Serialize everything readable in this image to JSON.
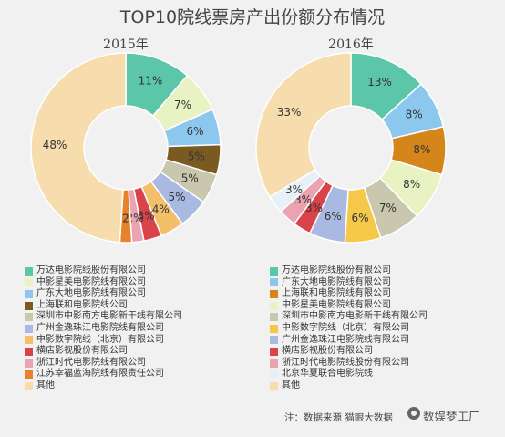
{
  "title": "TOP10院线票房产出份额分布情况",
  "source_note": "注：数据来源 猫眼大数据",
  "brand": "数娱梦工厂",
  "chart_data": [
    {
      "type": "pie",
      "title": "2015年",
      "slices": [
        {
          "label": "万达电影院线股份有限公司",
          "value": 11,
          "text": "11%",
          "color": "#5cc6a8"
        },
        {
          "label": "中影星美电影院线有限公司",
          "value": 7,
          "text": "7%",
          "color": "#e8f2c2"
        },
        {
          "label": "广东大地电影院线有限公司",
          "value": 6,
          "text": "6%",
          "color": "#8cc8ee"
        },
        {
          "label": "上海联和电影院线有限公司",
          "value": 5,
          "text": "5%",
          "color": "#7b5a22"
        },
        {
          "label": "深圳市中影南方电影新干线有限公司",
          "value": 5,
          "text": "5%",
          "color": "#c9c7ae"
        },
        {
          "label": "广州金逸珠江电影院线有限公司",
          "value": 5,
          "text": "5%",
          "color": "#a9b9e2"
        },
        {
          "label": "中影数字院线（北京）有限公司",
          "value": 4,
          "text": "4%",
          "color": "#f3bf6a"
        },
        {
          "label": "横店影视股份有限公司",
          "value": 3,
          "text": "3%",
          "color": "#d8444a"
        },
        {
          "label": "浙江时代电影院线有限公司",
          "value": 2,
          "text": "2%",
          "color": "#eaa3b0"
        },
        {
          "label": "江苏幸福蓝海院线有限责任公司",
          "value": 2,
          "text": "2",
          "color": "#e7812c"
        },
        {
          "label": "其他",
          "value": 48,
          "text": "48%",
          "color": "#f7dcae"
        }
      ]
    },
    {
      "type": "pie",
      "title": "2016年",
      "slices": [
        {
          "label": "万达电影院线股份有限公司",
          "value": 13,
          "text": "13%",
          "color": "#5cc6a8"
        },
        {
          "label": "广东大地电影院线有限公司",
          "value": 8,
          "text": "8%",
          "color": "#8cc8ee"
        },
        {
          "label": "上海联和电影院线有限公司",
          "value": 8,
          "text": "8%",
          "color": "#d5861b"
        },
        {
          "label": "中影星美电影院线有限公司",
          "value": 8,
          "text": "8%",
          "color": "#e8f2c2"
        },
        {
          "label": "深圳市中影南方电影新干线有限公司",
          "value": 7,
          "text": "7%",
          "color": "#c9c7ae"
        },
        {
          "label": "中影数字院线（北京）有限公司",
          "value": 6,
          "text": "6%",
          "color": "#f5c84a"
        },
        {
          "label": "广州金逸珠江电影院线有限公司",
          "value": 6,
          "text": "6%",
          "color": "#a9b9e2"
        },
        {
          "label": "横店影视股份有限公司",
          "value": 3,
          "text": "3%",
          "color": "#d8444a"
        },
        {
          "label": "浙江时代电影院线股份有限公司",
          "value": 3,
          "text": "3%",
          "color": "#eaa3b0"
        },
        {
          "label": "北京华夏联合电影院线",
          "value": 3,
          "text": "3%",
          "color": "#e6f0f7"
        },
        {
          "label": "其他",
          "value": 33,
          "text": "33%",
          "color": "#f7dcae"
        }
      ]
    }
  ],
  "legends": [
    {
      "items": [
        {
          "label": "万达电影院线股份有限公司",
          "color": "#5cc6a8"
        },
        {
          "label": "中影星美电影院线有限公司",
          "color": "#e8f2c2"
        },
        {
          "label": "广东大地电影院线有限公司",
          "color": "#8cc8ee"
        },
        {
          "label": "上海联和电影院线公司",
          "color": "#7b5a22"
        },
        {
          "label": "深圳市中影南方电影新干线有限公司",
          "color": "#c9c7ae"
        },
        {
          "label": "广州金逸珠江电影院线有限公司",
          "color": "#a9b9e2"
        },
        {
          "label": "中影数字院线（北京）有限公司",
          "color": "#f3bf6a"
        },
        {
          "label": "横店影视股份有限公司",
          "color": "#d8444a"
        },
        {
          "label": "浙江时代电影院线有限公司",
          "color": "#eaa3b0"
        },
        {
          "label": "江苏幸福蓝海院线有限责任公司",
          "color": "#e7812c"
        },
        {
          "label": "其他",
          "color": "#f7dcae"
        }
      ]
    },
    {
      "items": [
        {
          "label": "万达电影院线股份有限公司",
          "color": "#5cc6a8"
        },
        {
          "label": "广东大地电影院线有限公司",
          "color": "#8cc8ee"
        },
        {
          "label": "上海联和电影院线有限公司",
          "color": "#d5861b"
        },
        {
          "label": "中影星美电影院线有限公司",
          "color": "#e8f2c2"
        },
        {
          "label": "深圳市中影南方电影新干线有限公司",
          "color": "#c9c7ae"
        },
        {
          "label": "中影数字院线（北京）有限公司",
          "color": "#f5c84a"
        },
        {
          "label": "广州金逸珠江电影院线有限公司",
          "color": "#a9b9e2"
        },
        {
          "label": "横店影视股份有限公司",
          "color": "#d8444a"
        },
        {
          "label": "浙江时代电影院线股份有限公司",
          "color": "#eaa3b0"
        },
        {
          "label": "北京华夏联合电影院线",
          "color": "#e6f0f7"
        },
        {
          "label": "其他",
          "color": "#f7dcae"
        }
      ]
    }
  ]
}
